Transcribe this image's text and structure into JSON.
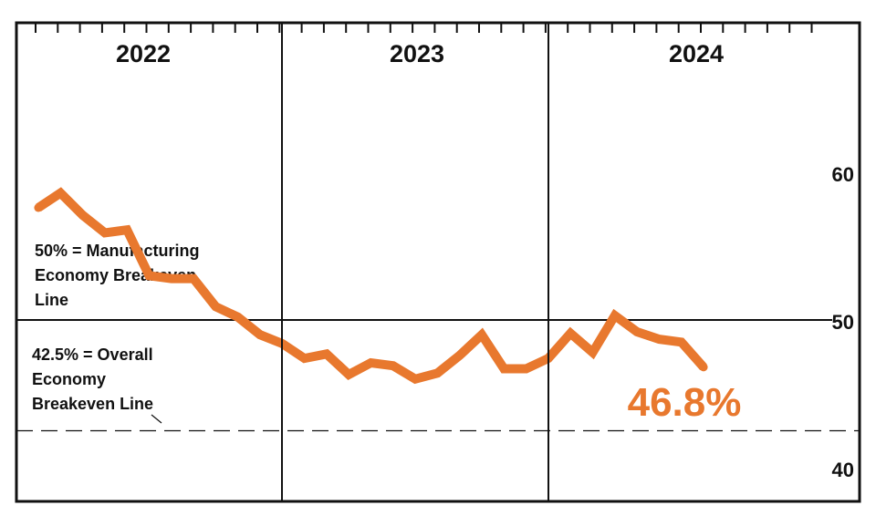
{
  "chart_data": {
    "type": "line",
    "title": "",
    "xlabel": "",
    "ylabel": "",
    "x_axis_labels": [
      "2022",
      "2023",
      "2024"
    ],
    "x_start": "2022-01",
    "ylim": [
      40,
      60
    ],
    "yticks": [
      "40",
      "50",
      "60"
    ],
    "y_axis_side": "right",
    "grid": false,
    "reference_lines": [
      {
        "value": 50,
        "style": "solid",
        "label": [
          "50% = Manufacturing",
          "Economy Breakeven",
          "Line"
        ]
      },
      {
        "value": 42.5,
        "style": "dashed",
        "label": [
          "42.5% = Overall",
          "Economy",
          "Breakeven Line"
        ]
      }
    ],
    "series": [
      {
        "color": "#E8782E",
        "x": [
          "2022-01",
          "2022-02",
          "2022-03",
          "2022-04",
          "2022-05",
          "2022-06",
          "2022-07",
          "2022-08",
          "2022-09",
          "2022-10",
          "2022-11",
          "2022-12",
          "2023-01",
          "2023-02",
          "2023-03",
          "2023-04",
          "2023-05",
          "2023-06",
          "2023-07",
          "2023-08",
          "2023-09",
          "2023-10",
          "2023-11",
          "2023-12",
          "2024-01",
          "2024-02",
          "2024-03",
          "2024-04",
          "2024-05",
          "2024-06",
          "2024-07"
        ],
        "values": [
          57.6,
          58.6,
          57.1,
          55.9,
          56.1,
          53.0,
          52.8,
          52.8,
          50.9,
          50.2,
          49.0,
          48.4,
          47.4,
          47.7,
          46.3,
          47.1,
          46.9,
          46.0,
          46.4,
          47.6,
          49.0,
          46.7,
          46.7,
          47.4,
          49.1,
          47.8,
          50.3,
          49.2,
          48.7,
          48.5,
          46.8
        ]
      }
    ],
    "callout": "46.8%"
  }
}
